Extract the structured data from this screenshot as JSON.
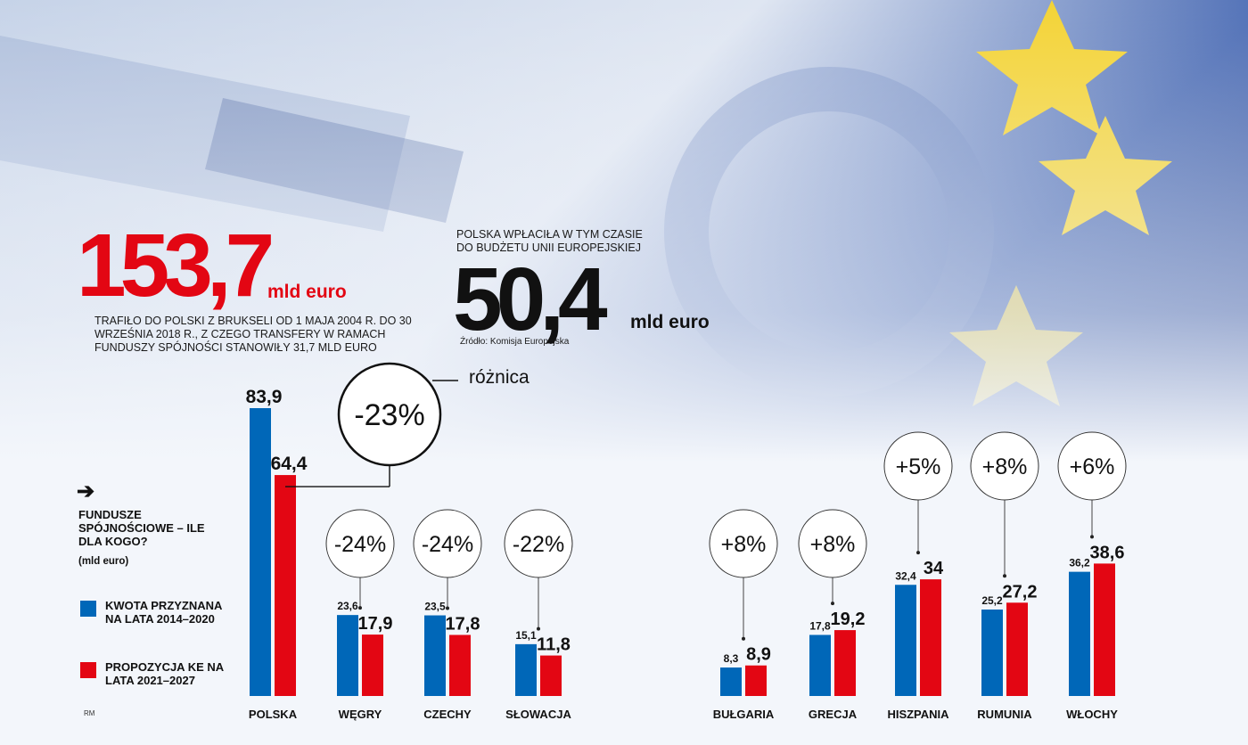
{
  "headline_received": {
    "value": "153,7",
    "unit": "mld euro",
    "description": "TRAFIŁO DO POLSKI Z BRUKSELI OD 1 MAJA 2004 R. DO 30 WRZEŚNIA 2018 R., Z CZEGO TRANSFERY W RAMACH FUNDUSZY SPÓJNOŚCI STANOWIŁY 31,7 MLD EURO"
  },
  "headline_paid": {
    "note": "POLSKA WPŁACIŁA W TYM CZASIE DO BUDŻETU UNII EUROPEJSKIEJ",
    "value": "50,4",
    "unit": "mld euro",
    "source": "Źródło: Komisja Europejska"
  },
  "difference_label": "różnica",
  "chart_data": {
    "type": "bar",
    "title": "FUNDUSZE SPÓJNOŚCIOWE – ILE DLA KOGO?",
    "units": "(mld euro)",
    "categories": [
      "POLSKA",
      "WĘGRY",
      "CZECHY",
      "SŁOWACJA",
      "BUŁGARIA",
      "GRECJA",
      "HISZPANIA",
      "RUMUNIA",
      "WŁOCHY"
    ],
    "series": [
      {
        "name": "KWOTA PRZYZNANA NA LATA 2014–2020",
        "color": "#0067b8",
        "values": [
          83.9,
          23.6,
          23.5,
          15.1,
          8.3,
          17.8,
          32.4,
          25.2,
          36.2
        ],
        "labels": [
          "83,9",
          "23,6",
          "23,5",
          "15,1",
          "8,3",
          "17,8",
          "32,4",
          "25,2",
          "36,2"
        ]
      },
      {
        "name": "PROPOZYCJA KE NA LATA 2021–2027",
        "color": "#e30613",
        "values": [
          64.4,
          17.9,
          17.8,
          11.8,
          8.9,
          19.2,
          34,
          27.2,
          38.6
        ],
        "labels": [
          "64,4",
          "17,9",
          "17,8",
          "11,8",
          "8,9",
          "19,2",
          "34",
          "27,2",
          "38,6"
        ]
      }
    ],
    "changes": [
      "-23%",
      "-24%",
      "-24%",
      "-22%",
      "+8%",
      "+8%",
      "+5%",
      "+8%",
      "+6%"
    ]
  },
  "credit": "RM"
}
